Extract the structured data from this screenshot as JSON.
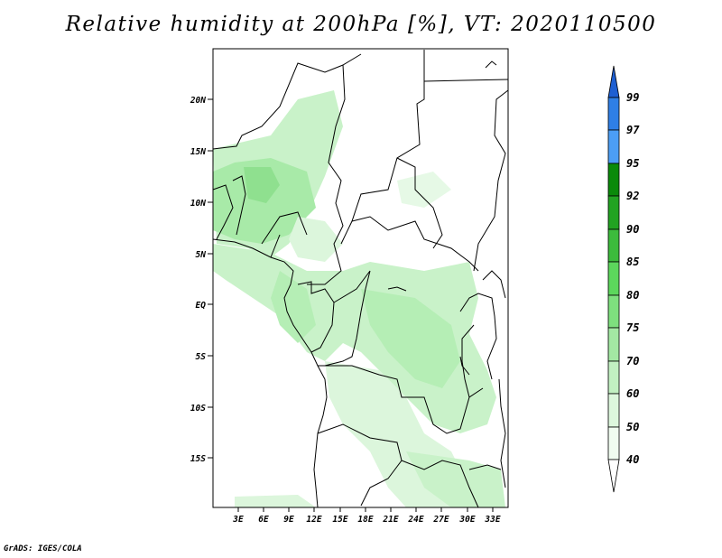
{
  "title": "Relative humidity at 200hPa [%], VT: 2020110500",
  "credit": "GrADS: IGES/COLA",
  "map": {
    "lat_labels": [
      "20N",
      "15N",
      "10N",
      "5N",
      "EQ",
      "5S",
      "10S",
      "15S"
    ],
    "lon_labels": [
      "3E",
      "6E",
      "9E",
      "12E",
      "15E",
      "18E",
      "21E",
      "24E",
      "27E",
      "30E",
      "33E"
    ]
  },
  "colorbar": {
    "labels": [
      "99",
      "97",
      "95",
      "92",
      "90",
      "85",
      "80",
      "75",
      "70",
      "60",
      "50",
      "40"
    ],
    "colors": [
      "#1e5fd2",
      "#2f7fe6",
      "#4c9ef5",
      "#0a8a0a",
      "#22a322",
      "#3cbb3c",
      "#5cd75c",
      "#7ee07e",
      "#a3e8a3",
      "#c2f0c2",
      "#ddf7dd",
      "#f0fcf0",
      "#ffffff"
    ],
    "colors_note": "top arrow to bottom arrow"
  }
}
